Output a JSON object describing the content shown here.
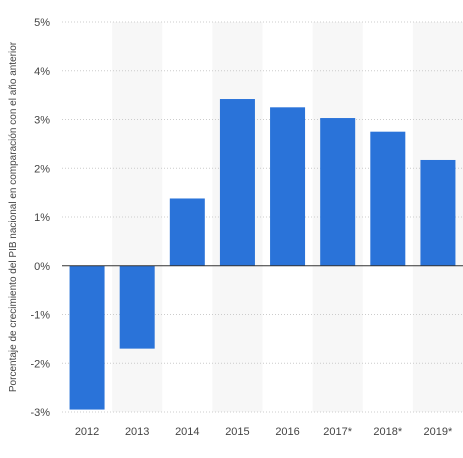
{
  "chart_data": {
    "type": "bar",
    "title": "",
    "xlabel": "",
    "ylabel": "Porcentaje de crecimiento del PIB nacional en comparación con el año anterior",
    "categories": [
      "2012",
      "2013",
      "2014",
      "2015",
      "2016",
      "2017*",
      "2018*",
      "2019*"
    ],
    "values": [
      -2.95,
      -1.7,
      1.38,
      3.42,
      3.25,
      3.03,
      2.75,
      2.17
    ],
    "ylim": [
      -3,
      5
    ],
    "yticks": [
      5,
      4,
      3,
      2,
      1,
      0,
      -1,
      -2,
      -3
    ],
    "ytick_labels": [
      "5%",
      "4%",
      "3%",
      "2%",
      "1%",
      "0%",
      "-1%",
      "-2%",
      "-3%"
    ],
    "grid": true,
    "bar_color": "#2a73d9",
    "alt_band_color": "#f7f7f7"
  }
}
